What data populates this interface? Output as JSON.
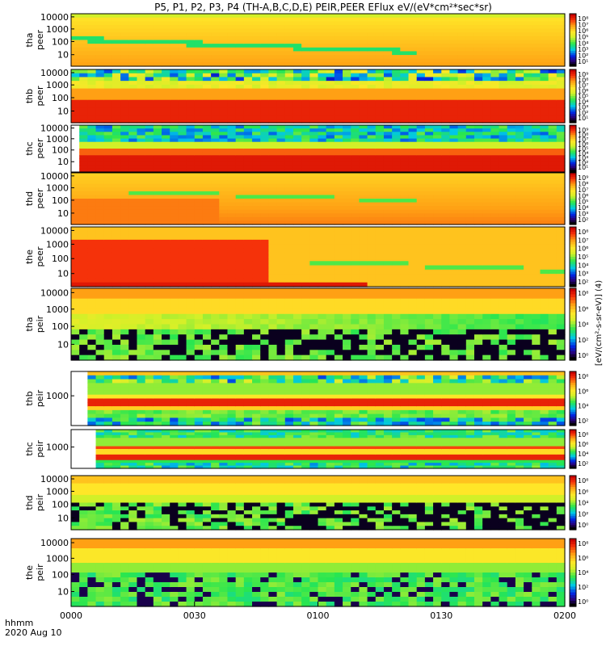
{
  "chart_data": {
    "type": "heatmap",
    "title": "P5, P1, P2, P3, P4 (TH-A,B,C,D,E) PEIR,PEER EFlux eV/(eV*cm²*sec*sr)",
    "time_axis": {
      "label_line1": "hhmm",
      "label_line2": "2020 Aug 10",
      "ticks": [
        "0000",
        "0030",
        "0100",
        "0130",
        "0200"
      ]
    },
    "colorbar_label": "[eV/(cm²-s-sr-eV)] (4)",
    "panels": [
      {
        "label_top": "tha",
        "label_bot": "peer",
        "y_ticks": [
          "10000",
          "1000",
          "100",
          "10"
        ],
        "cbar_ticks": [
          "10⁸",
          "10⁷",
          "10⁶",
          "10⁵",
          "10⁴",
          "10³",
          "10²",
          "10¹"
        ]
      },
      {
        "label_top": "thb",
        "label_bot": "peer",
        "y_ticks": [
          "10000",
          "1000",
          "100",
          "10"
        ],
        "cbar_ticks": [
          "10⁹",
          "10⁸",
          "10⁷",
          "10⁶",
          "10⁵",
          "10⁴",
          "10³",
          "10²",
          "10¹"
        ]
      },
      {
        "label_top": "thc",
        "label_bot": "peer",
        "y_ticks": [
          "10000",
          "1000",
          "100",
          "10"
        ],
        "cbar_ticks": [
          "10⁹",
          "10⁸",
          "10⁷",
          "10⁶",
          "10⁵",
          "10⁴",
          "10³",
          "10²",
          "10¹"
        ]
      },
      {
        "label_top": "thd",
        "label_bot": "peer",
        "y_ticks": [
          "10000",
          "1000",
          "100",
          "10"
        ],
        "cbar_ticks": [
          "10⁹",
          "10⁸",
          "10⁷",
          "10⁶",
          "10⁵",
          "10⁴",
          "10³",
          "10²"
        ]
      },
      {
        "label_top": "the",
        "label_bot": "peer",
        "y_ticks": [
          "10000",
          "1000",
          "100",
          "10"
        ],
        "cbar_ticks": [
          "10⁸",
          "10⁷",
          "10⁶",
          "10⁵",
          "10⁴",
          "10³",
          "10²"
        ]
      },
      {
        "label_top": "tha",
        "label_bot": "peir",
        "y_ticks": [
          "10000",
          "1000",
          "100",
          "10"
        ],
        "cbar_ticks": [
          "10⁸",
          "10⁶",
          "10⁴",
          "10²",
          "10⁰"
        ]
      },
      {
        "label_top": "thb",
        "label_bot": "peir",
        "y_ticks": [
          "1000"
        ],
        "cbar_ticks": [
          "10⁸",
          "10⁶",
          "10⁴",
          "10²"
        ]
      },
      {
        "label_top": "thc",
        "label_bot": "peir",
        "y_ticks": [
          "1000"
        ],
        "cbar_ticks": [
          "10⁸",
          "10⁶",
          "10⁴",
          "10²"
        ]
      },
      {
        "label_top": "thd",
        "label_bot": "peir",
        "y_ticks": [
          "10000",
          "1000",
          "100",
          "10"
        ],
        "cbar_ticks": [
          "10⁸",
          "10⁶",
          "10⁴",
          "10²",
          "10⁰"
        ]
      },
      {
        "label_top": "the",
        "label_bot": "peir",
        "y_ticks": [
          "10000",
          "1000",
          "100",
          "10"
        ],
        "cbar_ticks": [
          "10⁸",
          "10⁶",
          "10⁴",
          "10²",
          "10⁰"
        ]
      }
    ]
  }
}
